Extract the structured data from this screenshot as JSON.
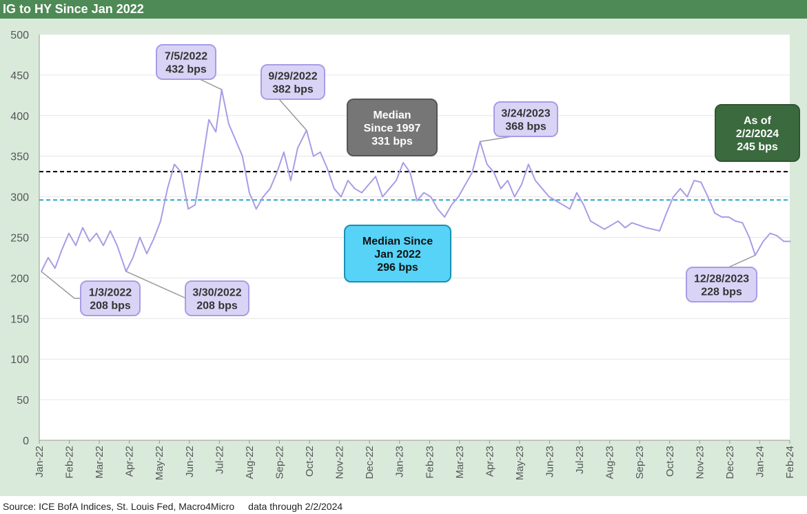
{
  "title": "IG to HY Since Jan 2022",
  "footer": {
    "source": "Source: ICE BofA Indices, St. Louis Fed, Macro4Micro",
    "through": "data through 2/2/2024"
  },
  "colors": {
    "title_bar": "#4e8a55",
    "background": "#d9eadb",
    "series": "#a89ce6",
    "median_1997": "#000000",
    "median_2022": "#2aa7c6",
    "callout_fill": "#d9d4f5",
    "callout_border": "#a89ce6"
  },
  "chart_data": {
    "type": "line",
    "title": "IG to HY Since Jan 2022",
    "ylim": [
      0,
      500
    ],
    "yticks": [
      0,
      50,
      100,
      150,
      200,
      250,
      300,
      350,
      400,
      450,
      500
    ],
    "xlim": [
      "2022-01-01",
      "2024-02-01"
    ],
    "xtick_labels": [
      "Jan-22",
      "Feb-22",
      "Mar-22",
      "Apr-22",
      "May-22",
      "Jun-22",
      "Jul-22",
      "Aug-22",
      "Sep-22",
      "Oct-22",
      "Nov-22",
      "Dec-22",
      "Jan-23",
      "Feb-23",
      "Mar-23",
      "Apr-23",
      "May-23",
      "Jun-23",
      "Jul-23",
      "Aug-23",
      "Sep-23",
      "Oct-23",
      "Nov-23",
      "Dec-23",
      "Jan-24",
      "Feb-24"
    ],
    "grid": "horizontal",
    "series": [
      {
        "x": [
          "2022-01-03",
          "2022-01-10",
          "2022-01-17",
          "2022-01-24",
          "2022-01-31",
          "2022-02-07",
          "2022-02-14",
          "2022-02-21",
          "2022-02-28",
          "2022-03-07",
          "2022-03-14",
          "2022-03-21",
          "2022-03-30",
          "2022-04-06",
          "2022-04-13",
          "2022-04-20",
          "2022-04-27",
          "2022-05-04",
          "2022-05-11",
          "2022-05-18",
          "2022-05-25",
          "2022-06-01",
          "2022-06-08",
          "2022-06-15",
          "2022-06-22",
          "2022-06-29",
          "2022-07-05",
          "2022-07-12",
          "2022-07-19",
          "2022-07-26",
          "2022-08-02",
          "2022-08-09",
          "2022-08-16",
          "2022-08-23",
          "2022-08-30",
          "2022-09-06",
          "2022-09-13",
          "2022-09-20",
          "2022-09-29",
          "2022-10-06",
          "2022-10-13",
          "2022-10-20",
          "2022-10-27",
          "2022-11-03",
          "2022-11-10",
          "2022-11-17",
          "2022-11-24",
          "2022-12-01",
          "2022-12-08",
          "2022-12-15",
          "2022-12-22",
          "2022-12-29",
          "2023-01-05",
          "2023-01-12",
          "2023-01-19",
          "2023-01-26",
          "2023-02-02",
          "2023-02-09",
          "2023-02-16",
          "2023-02-23",
          "2023-03-02",
          "2023-03-09",
          "2023-03-16",
          "2023-03-24",
          "2023-03-31",
          "2023-04-07",
          "2023-04-14",
          "2023-04-21",
          "2023-04-28",
          "2023-05-05",
          "2023-05-12",
          "2023-05-19",
          "2023-05-26",
          "2023-06-02",
          "2023-06-09",
          "2023-06-16",
          "2023-06-23",
          "2023-06-30",
          "2023-07-07",
          "2023-07-14",
          "2023-07-21",
          "2023-07-28",
          "2023-08-04",
          "2023-08-11",
          "2023-08-18",
          "2023-08-25",
          "2023-09-01",
          "2023-09-08",
          "2023-09-15",
          "2023-09-22",
          "2023-09-29",
          "2023-10-06",
          "2023-10-13",
          "2023-10-20",
          "2023-10-27",
          "2023-11-03",
          "2023-11-10",
          "2023-11-17",
          "2023-11-24",
          "2023-12-01",
          "2023-12-08",
          "2023-12-15",
          "2023-12-22",
          "2023-12-28",
          "2024-01-05",
          "2024-01-12",
          "2024-01-19",
          "2024-01-26",
          "2024-02-02"
        ],
        "values": [
          208,
          225,
          212,
          235,
          255,
          240,
          262,
          245,
          255,
          240,
          258,
          240,
          208,
          225,
          250,
          230,
          248,
          270,
          310,
          340,
          330,
          285,
          290,
          340,
          395,
          380,
          432,
          390,
          370,
          350,
          305,
          285,
          300,
          310,
          330,
          355,
          320,
          360,
          382,
          350,
          355,
          335,
          310,
          300,
          320,
          310,
          305,
          315,
          325,
          300,
          310,
          320,
          342,
          330,
          295,
          305,
          300,
          285,
          275,
          290,
          300,
          315,
          330,
          368,
          340,
          330,
          310,
          320,
          300,
          315,
          340,
          320,
          310,
          300,
          295,
          290,
          285,
          305,
          290,
          270,
          265,
          260,
          265,
          270,
          262,
          268,
          265,
          262,
          260,
          258,
          280,
          300,
          310,
          300,
          320,
          318,
          300,
          280,
          275,
          275,
          270,
          268,
          250,
          228,
          245,
          255,
          252,
          245,
          245
        ]
      }
    ],
    "reference_lines": [
      {
        "label": "Median\nSince 1997\n331 bps",
        "value": 331
      },
      {
        "label": "Median Since\nJan 2022\n296 bps",
        "value": 296
      }
    ],
    "annotations": [
      {
        "date": "1/3/2022",
        "text": "208 bps",
        "x": "2022-01-03",
        "y": 208
      },
      {
        "date": "3/30/2022",
        "text": "208 bps",
        "x": "2022-03-30",
        "y": 208
      },
      {
        "date": "7/5/2022",
        "text": "432 bps",
        "x": "2022-07-05",
        "y": 432
      },
      {
        "date": "9/29/2022",
        "text": "382 bps",
        "x": "2022-09-29",
        "y": 382
      },
      {
        "date": "3/24/2023",
        "text": "368 bps",
        "x": "2023-03-24",
        "y": 368
      },
      {
        "date": "12/28/2023",
        "text": "228 bps",
        "x": "2023-12-28",
        "y": 228
      },
      {
        "date": "As of\n2/2/2024",
        "text": "245 bps",
        "x": "2024-02-02",
        "y": 245
      }
    ]
  }
}
